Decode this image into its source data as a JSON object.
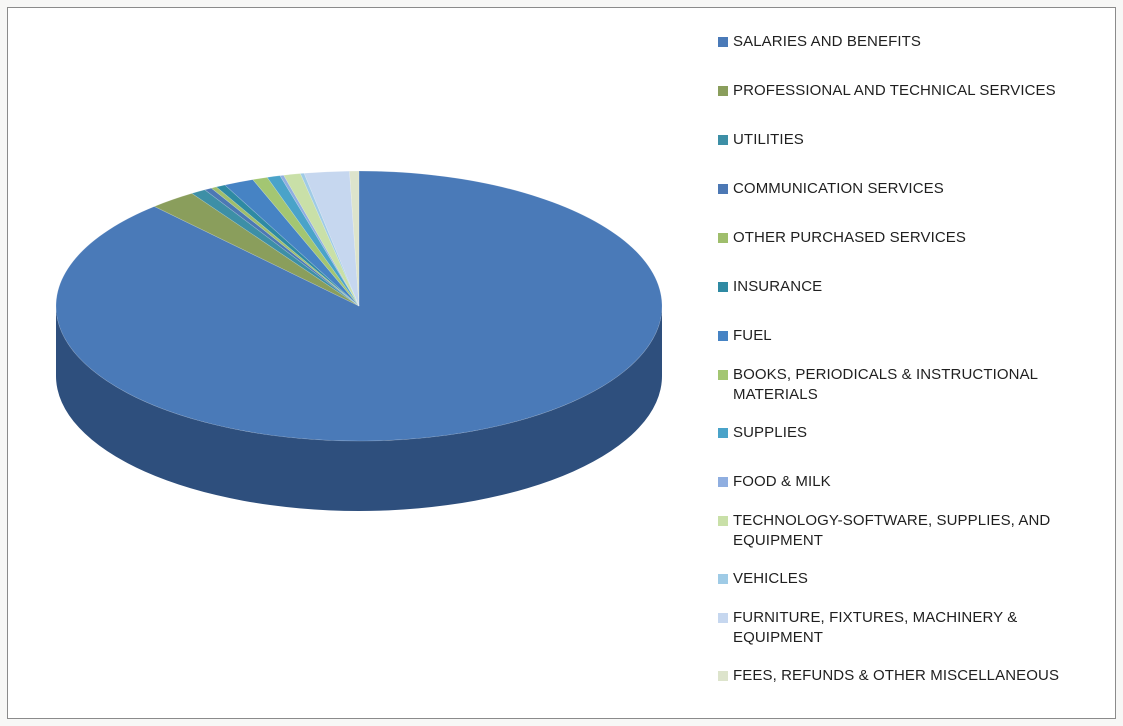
{
  "chart_data": {
    "type": "pie",
    "style": "3d",
    "title": "",
    "legend_position": "right",
    "slices": [
      {
        "label": "SALARIES AND BENEFITS",
        "value": 88.2,
        "color": "#4a7ab8",
        "side_color": "#2e4f7d"
      },
      {
        "label": "PROFESSIONAL AND TECHNICAL SERVICES",
        "value": 2.5,
        "color": "#8a9e5c",
        "side_color": "#5f6f3c"
      },
      {
        "label": "UTILITIES",
        "value": 0.8,
        "color": "#3d8fa6",
        "side_color": "#2a6475"
      },
      {
        "label": "COMMUNICATION SERVICES",
        "value": 0.4,
        "color": "#4c78b4",
        "side_color": "#33547e"
      },
      {
        "label": "OTHER PURCHASED SERVICES",
        "value": 0.3,
        "color": "#9fbe6c",
        "side_color": "#6f854a"
      },
      {
        "label": "INSURANCE",
        "value": 0.5,
        "color": "#2f8aa3",
        "side_color": "#1f6072"
      },
      {
        "label": "FUEL",
        "value": 1.6,
        "color": "#4683c4",
        "side_color": "#305c8a"
      },
      {
        "label": "BOOKS, PERIODICALS & INSTRUCTIONAL MATERIALS",
        "value": 0.8,
        "color": "#a3c672",
        "side_color": "#718b4f"
      },
      {
        "label": "SUPPLIES",
        "value": 0.7,
        "color": "#4aa3c9",
        "side_color": "#33718c"
      },
      {
        "label": "FOOD & MILK",
        "value": 0.2,
        "color": "#8faee0",
        "side_color": "#647a9d"
      },
      {
        "label": "TECHNOLOGY-SOFTWARE, SUPPLIES, AND EQUIPMENT",
        "value": 0.9,
        "color": "#c9e0a8",
        "side_color": "#8c9c75"
      },
      {
        "label": "VEHICLES",
        "value": 0.2,
        "color": "#9fcbe6",
        "side_color": "#6f8ea1"
      },
      {
        "label": "FURNITURE, FIXTURES, MACHINERY & EQUIPMENT",
        "value": 2.4,
        "color": "#c6d7ef",
        "side_color": "#8a97a8"
      },
      {
        "label": "FEES, REFUNDS & OTHER MISCELLANEOUS",
        "value": 0.5,
        "color": "#dde4cc",
        "side_color": "#9aa08e"
      }
    ]
  }
}
